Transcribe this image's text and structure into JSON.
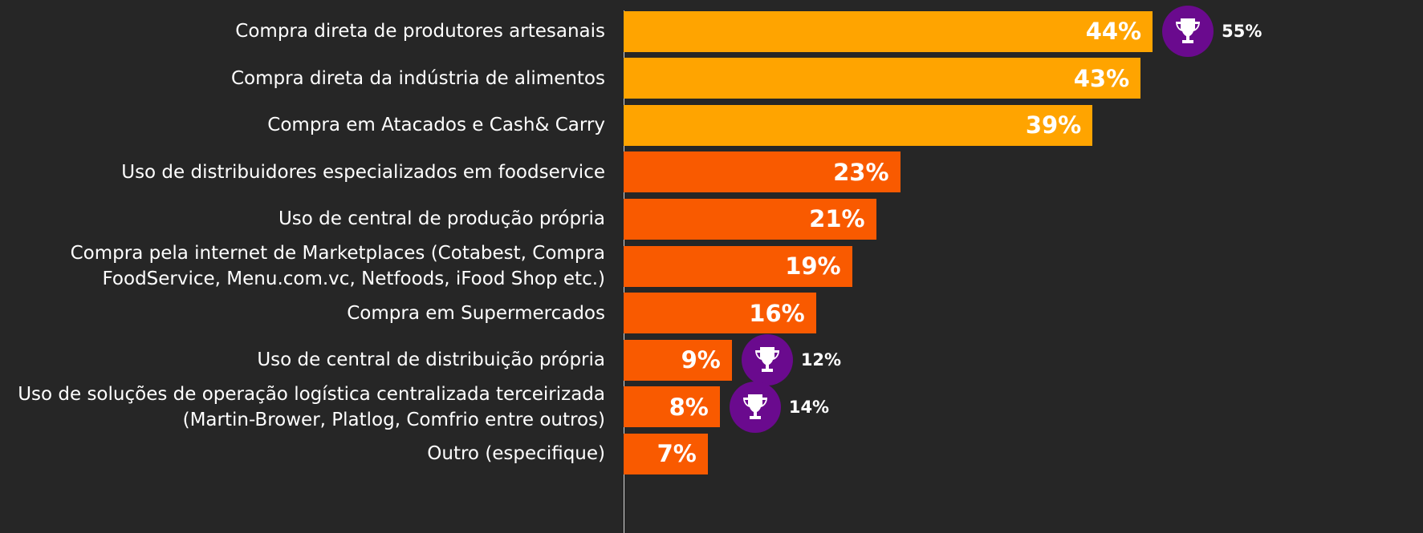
{
  "chart_data": {
    "type": "bar",
    "orientation": "horizontal",
    "categories": [
      "Compra direta de produtores artesanais",
      "Compra direta da indústria de alimentos",
      "Compra em Atacados e Cash& Carry",
      "Uso de distribuidores especializados em foodservice",
      "Uso de central de produção própria",
      "Compra pela internet de Marketplaces (Cotabest, Compra\nFoodService, Menu.com.vc, Netfoods, iFood Shop etc.)",
      "Compra em Supermercados",
      "Uso de central de distribuição própria",
      "Uso de soluções de operação logística centralizada terceirizada\n(Martin-Brower, Platlog, Comfrio entre outros)",
      "Outro (especifique)"
    ],
    "values": [
      44,
      43,
      39,
      23,
      21,
      19,
      16,
      9,
      8,
      7
    ],
    "value_labels": [
      "44%",
      "43%",
      "39%",
      "23%",
      "21%",
      "19%",
      "16%",
      "9%",
      "8%",
      "7%"
    ],
    "colors": [
      "#ffa400",
      "#ffa400",
      "#ffa400",
      "#f95a00",
      "#f95a00",
      "#f95a00",
      "#f95a00",
      "#f95a00",
      "#f95a00",
      "#f95a00"
    ],
    "benchmark": [
      55,
      null,
      null,
      null,
      null,
      null,
      null,
      12,
      14,
      null
    ],
    "benchmark_labels": [
      "55%",
      null,
      null,
      null,
      null,
      null,
      null,
      "12%",
      "14%",
      null
    ],
    "xlim": [
      0,
      100
    ]
  }
}
